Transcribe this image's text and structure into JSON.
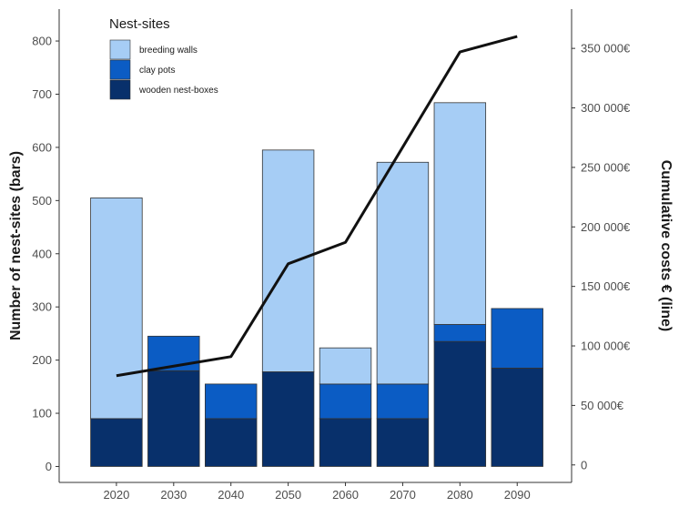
{
  "chart_data": {
    "type": "bar",
    "stacked": true,
    "categories": [
      "2020",
      "2030",
      "2040",
      "2050",
      "2060",
      "2070",
      "2080",
      "2090"
    ],
    "series": [
      {
        "name": "wooden nest-boxes",
        "color": "#08306b",
        "values": [
          90,
          180,
          90,
          178,
          90,
          90,
          235,
          185
        ]
      },
      {
        "name": "clay pots",
        "color": "#0b5cc4",
        "values": [
          0,
          65,
          65,
          0,
          65,
          65,
          32,
          112
        ]
      },
      {
        "name": "breeding walls",
        "color": "#a6cdf5",
        "values": [
          415,
          0,
          0,
          417,
          68,
          417,
          417,
          0
        ]
      }
    ],
    "line": {
      "color": "#111111",
      "values": [
        75000,
        83000,
        91000,
        169000,
        187000,
        267000,
        347000,
        360000
      ]
    },
    "ylabel": "Number of nest-sites (bars)",
    "y2label": "Cumulative costs € (line)",
    "ylim": [
      -30,
      860
    ],
    "y2lim": [
      -14700,
      383000
    ],
    "yticks": [
      0,
      100,
      200,
      300,
      400,
      500,
      600,
      700,
      800
    ],
    "y2ticks": [
      {
        "value": 0,
        "label": "0"
      },
      {
        "value": 50000,
        "label": "50 000€"
      },
      {
        "value": 100000,
        "label": "100 000€"
      },
      {
        "value": 150000,
        "label": "150 000€"
      },
      {
        "value": 200000,
        "label": "200 000€"
      },
      {
        "value": 250000,
        "label": "250 000€"
      },
      {
        "value": 300000,
        "label": "300 000€"
      },
      {
        "value": 350000,
        "label": "350 000€"
      }
    ],
    "legend": {
      "title": "Nest-sites",
      "position": "top-left",
      "items": [
        {
          "label": "breeding walls",
          "color": "#a6cdf5"
        },
        {
          "label": "clay pots",
          "color": "#0b5cc4"
        },
        {
          "label": "wooden nest-boxes",
          "color": "#08306b"
        }
      ]
    },
    "grid": false
  }
}
